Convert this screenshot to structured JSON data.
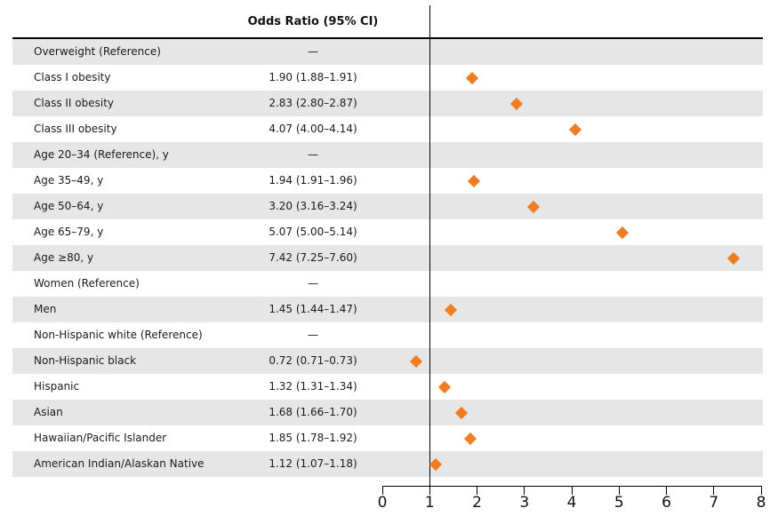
{
  "header": {
    "column_title": "Odds Ratio (95% CI)"
  },
  "chart_data": {
    "type": "scatter",
    "variant": "forest-plot",
    "title": "Odds Ratio (95% CI)",
    "legend": "none",
    "grid": false,
    "marker": {
      "shape": "diamond",
      "color": "#EF7D23"
    },
    "row_shade_color": "#E6E6E6",
    "axis": {
      "min": 0,
      "max": 8,
      "ticks": [
        "0",
        "1",
        "2",
        "3",
        "4",
        "5",
        "6",
        "7",
        "8"
      ],
      "reference_line": 1
    },
    "rows": [
      {
        "label": "Overweight (Reference)",
        "display": "—",
        "or": null,
        "ci_low": null,
        "ci_high": null
      },
      {
        "label": "Class I obesity",
        "display": "1.90 (1.88–1.91)",
        "or": 1.9,
        "ci_low": 1.88,
        "ci_high": 1.91
      },
      {
        "label": "Class II obesity",
        "display": "2.83 (2.80–2.87)",
        "or": 2.83,
        "ci_low": 2.8,
        "ci_high": 2.87
      },
      {
        "label": "Class III obesity",
        "display": "4.07 (4.00–4.14)",
        "or": 4.07,
        "ci_low": 4.0,
        "ci_high": 4.14
      },
      {
        "label": "Age 20–34 (Reference), y",
        "display": "—",
        "or": null,
        "ci_low": null,
        "ci_high": null
      },
      {
        "label": "Age 35–49, y",
        "display": "1.94 (1.91–1.96)",
        "or": 1.94,
        "ci_low": 1.91,
        "ci_high": 1.96
      },
      {
        "label": "Age 50–64, y",
        "display": "3.20 (3.16–3.24)",
        "or": 3.2,
        "ci_low": 3.16,
        "ci_high": 3.24
      },
      {
        "label": "Age 65–79, y",
        "display": "5.07 (5.00–5.14)",
        "or": 5.07,
        "ci_low": 5.0,
        "ci_high": 5.14
      },
      {
        "label": "Age ≥80, y",
        "display": "7.42 (7.25–7.60)",
        "or": 7.42,
        "ci_low": 7.25,
        "ci_high": 7.6
      },
      {
        "label": "Women (Reference)",
        "display": "—",
        "or": null,
        "ci_low": null,
        "ci_high": null
      },
      {
        "label": "Men",
        "display": "1.45 (1.44–1.47)",
        "or": 1.45,
        "ci_low": 1.44,
        "ci_high": 1.47
      },
      {
        "label": "Non-Hispanic white (Reference)",
        "display": "—",
        "or": null,
        "ci_low": null,
        "ci_high": null
      },
      {
        "label": "Non-Hispanic black",
        "display": "0.72 (0.71–0.73)",
        "or": 0.72,
        "ci_low": 0.71,
        "ci_high": 0.73
      },
      {
        "label": "Hispanic",
        "display": "1.32 (1.31–1.34)",
        "or": 1.32,
        "ci_low": 1.31,
        "ci_high": 1.34
      },
      {
        "label": "Asian",
        "display": "1.68 (1.66–1.70)",
        "or": 1.68,
        "ci_low": 1.66,
        "ci_high": 1.7
      },
      {
        "label": "Hawaiian/Pacific Islander",
        "display": "1.85 (1.78–1.92)",
        "or": 1.85,
        "ci_low": 1.78,
        "ci_high": 1.92
      },
      {
        "label": "American Indian/Alaskan Native",
        "display": "1.12 (1.07–1.18)",
        "or": 1.12,
        "ci_low": 1.07,
        "ci_high": 1.18
      }
    ]
  }
}
